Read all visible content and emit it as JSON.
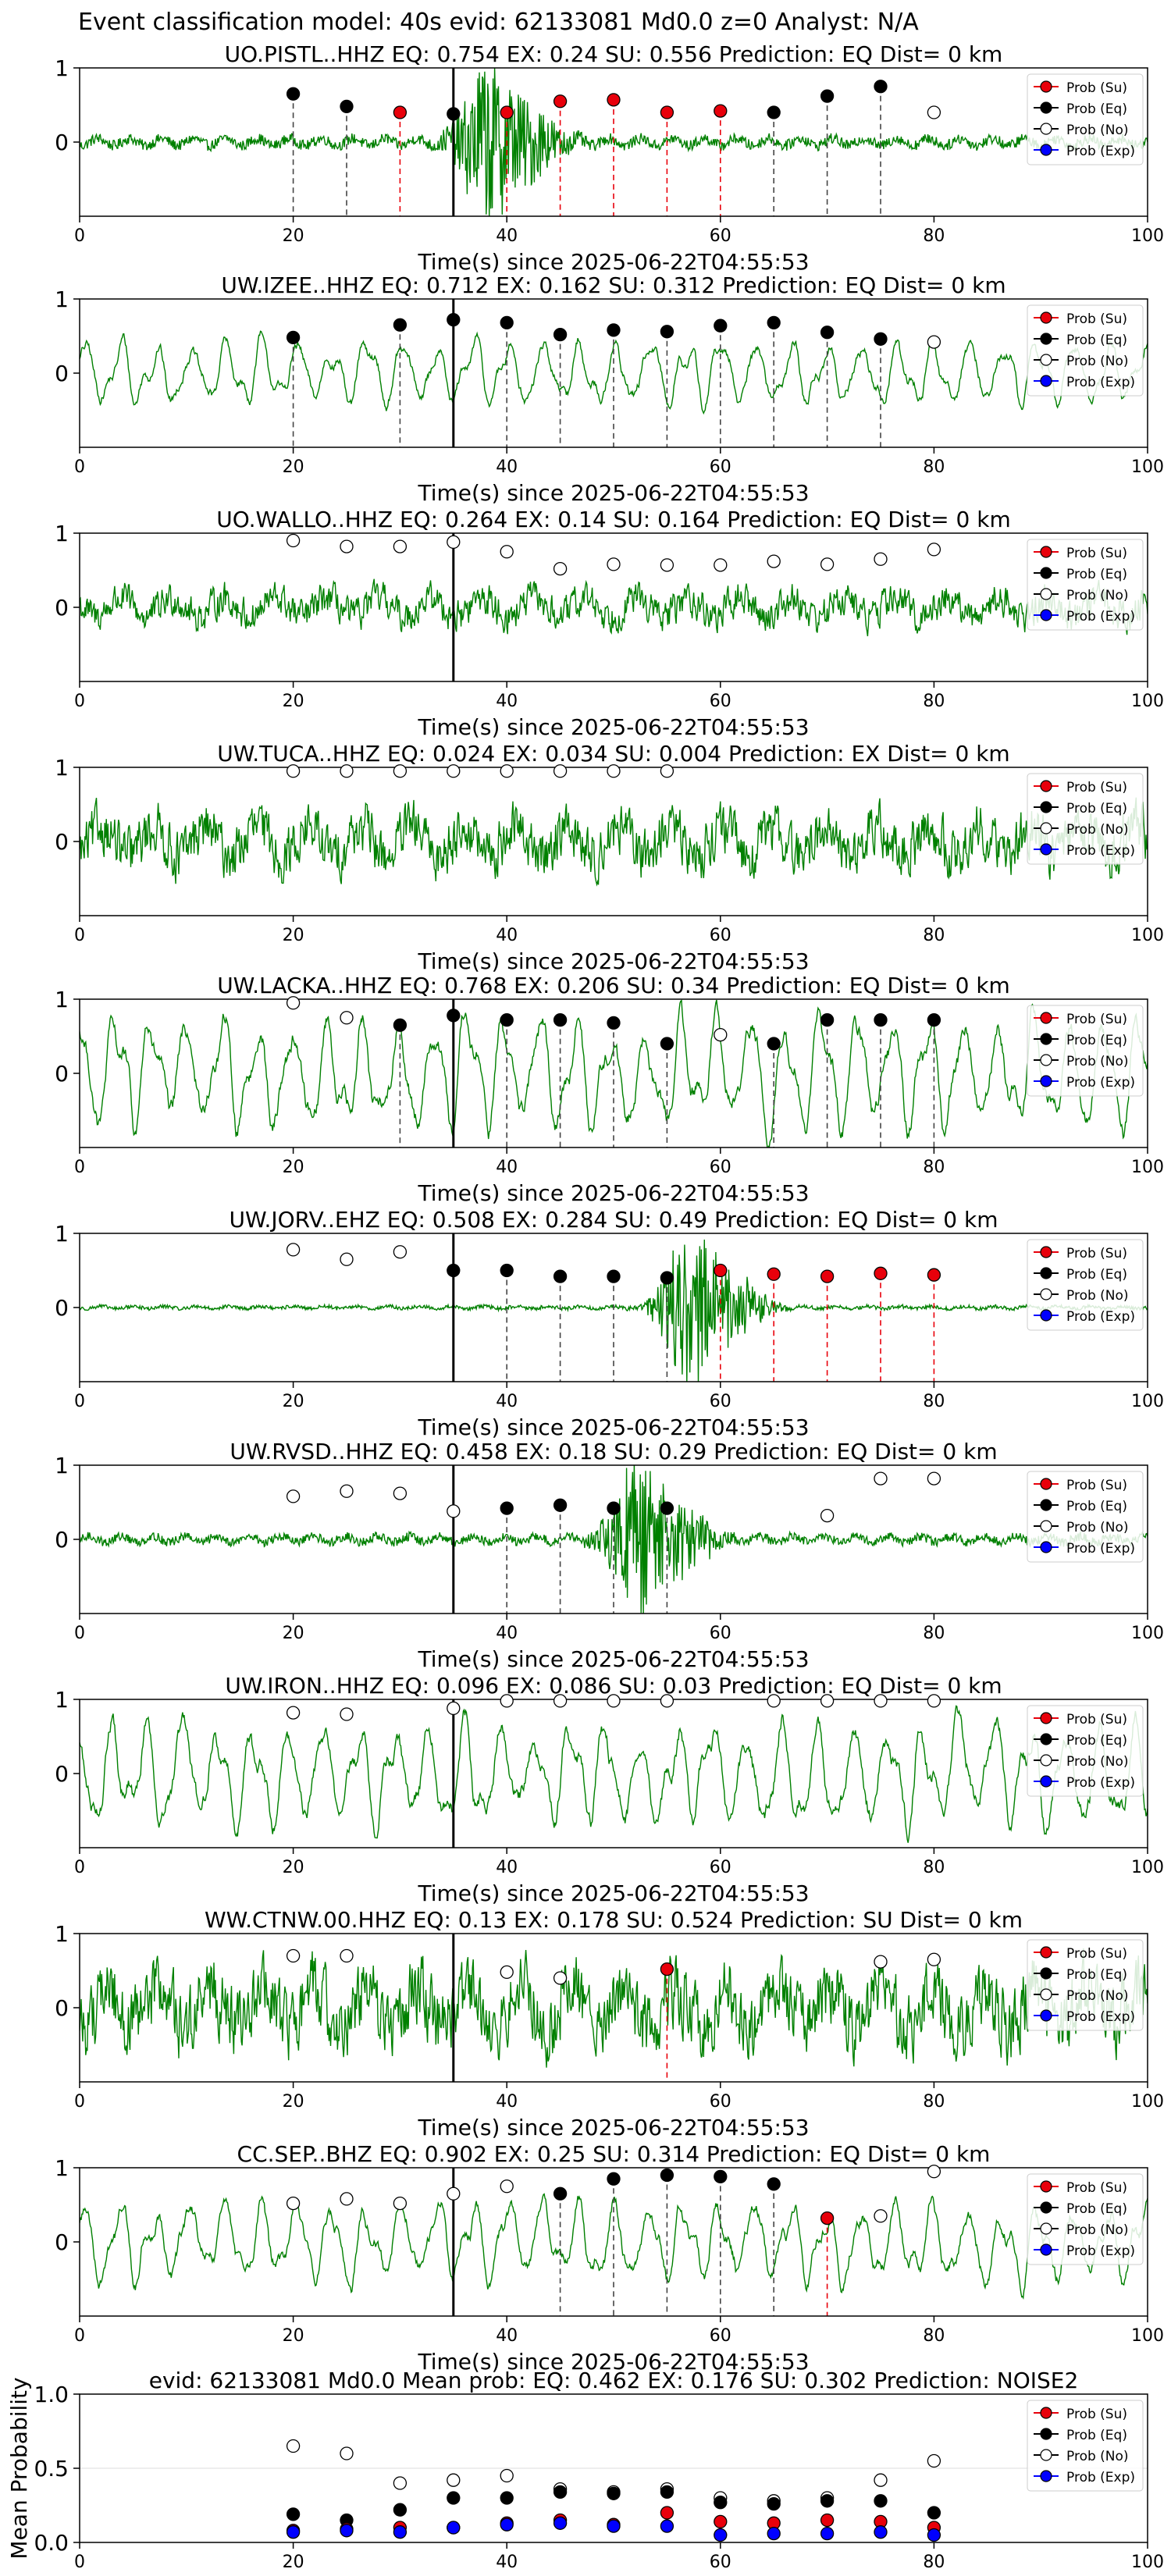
{
  "figure": {
    "suptitle": "Event classification model: 40s evid: 62133081 Md0.0 z=0 Analyst: N/A"
  },
  "legend_entries": [
    {
      "key": "su",
      "label": "Prob (Su)",
      "color": "#e8000b"
    },
    {
      "key": "eq",
      "label": "Prob (Eq)",
      "color": "#000000"
    },
    {
      "key": "no",
      "label": "Prob (No)",
      "color": "#ffffff"
    },
    {
      "key": "exp",
      "label": "Prob (Exp)",
      "color": "#0000ff"
    }
  ],
  "colors": {
    "waveform": "#008000",
    "eq_line": "#444444",
    "su_line": "#e8000b",
    "pick_line": "#000000"
  },
  "chart_data": [
    {
      "type": "scatter",
      "title": "UO.PISTL..HHZ   EQ: 0.754  EX: 0.24  SU: 0.556   Prediction: EQ    Dist= 0 km",
      "xlabel": "Time(s) since 2025-06-22T04:55:53",
      "xlim": [
        0,
        100
      ],
      "ylim": [
        -1,
        1
      ],
      "xticks": [
        0,
        20,
        40,
        60,
        80,
        100
      ],
      "yticks": [
        0,
        1
      ],
      "pick_time": 35,
      "waveform": {
        "style": "burst",
        "center": 38,
        "amp": 0.12,
        "burst_amp": 0.95
      },
      "points": [
        {
          "x": 20,
          "y": 0.65,
          "cls": "eq"
        },
        {
          "x": 25,
          "y": 0.48,
          "cls": "eq"
        },
        {
          "x": 30,
          "y": 0.4,
          "cls": "su"
        },
        {
          "x": 35,
          "y": 0.38,
          "cls": "eq"
        },
        {
          "x": 40,
          "y": 0.4,
          "cls": "su"
        },
        {
          "x": 45,
          "y": 0.55,
          "cls": "su"
        },
        {
          "x": 50,
          "y": 0.57,
          "cls": "su"
        },
        {
          "x": 55,
          "y": 0.4,
          "cls": "su"
        },
        {
          "x": 60,
          "y": 0.42,
          "cls": "su"
        },
        {
          "x": 65,
          "y": 0.4,
          "cls": "eq"
        },
        {
          "x": 70,
          "y": 0.62,
          "cls": "eq"
        },
        {
          "x": 75,
          "y": 0.75,
          "cls": "eq"
        },
        {
          "x": 80,
          "y": 0.4,
          "cls": "no"
        }
      ]
    },
    {
      "type": "scatter",
      "title": "UW.IZEE..HHZ   EQ: 0.712  EX: 0.162  SU: 0.312   Prediction: EQ    Dist= 0 km",
      "xlabel": "Time(s) since 2025-06-22T04:55:53",
      "xlim": [
        0,
        100
      ],
      "ylim": [
        -1,
        1
      ],
      "xticks": [
        0,
        20,
        40,
        60,
        80,
        100
      ],
      "yticks": [
        0,
        1
      ],
      "pick_time": 35,
      "waveform": {
        "style": "smooth",
        "amp": 0.4
      },
      "points": [
        {
          "x": 20,
          "y": 0.48,
          "cls": "eq"
        },
        {
          "x": 30,
          "y": 0.65,
          "cls": "eq"
        },
        {
          "x": 35,
          "y": 0.72,
          "cls": "eq"
        },
        {
          "x": 40,
          "y": 0.68,
          "cls": "eq"
        },
        {
          "x": 45,
          "y": 0.52,
          "cls": "eq"
        },
        {
          "x": 50,
          "y": 0.58,
          "cls": "eq"
        },
        {
          "x": 55,
          "y": 0.56,
          "cls": "eq"
        },
        {
          "x": 60,
          "y": 0.64,
          "cls": "eq"
        },
        {
          "x": 65,
          "y": 0.68,
          "cls": "eq"
        },
        {
          "x": 70,
          "y": 0.55,
          "cls": "eq"
        },
        {
          "x": 75,
          "y": 0.46,
          "cls": "eq"
        },
        {
          "x": 80,
          "y": 0.42,
          "cls": "no"
        }
      ]
    },
    {
      "type": "scatter",
      "title": "UO.WALLO..HHZ   EQ: 0.264  EX: 0.14  SU: 0.164   Prediction: EQ    Dist= 0 km",
      "xlabel": "Time(s) since 2025-06-22T04:55:53",
      "xlim": [
        0,
        100
      ],
      "ylim": [
        -1,
        1
      ],
      "xticks": [
        0,
        20,
        40,
        60,
        80,
        100
      ],
      "yticks": [
        0,
        1
      ],
      "pick_time": 35,
      "waveform": {
        "style": "noise",
        "amp": 0.35
      },
      "points": [
        {
          "x": 20,
          "y": 0.9,
          "cls": "no"
        },
        {
          "x": 25,
          "y": 0.82,
          "cls": "no"
        },
        {
          "x": 30,
          "y": 0.82,
          "cls": "no"
        },
        {
          "x": 35,
          "y": 0.88,
          "cls": "no"
        },
        {
          "x": 40,
          "y": 0.75,
          "cls": "no"
        },
        {
          "x": 45,
          "y": 0.52,
          "cls": "no"
        },
        {
          "x": 50,
          "y": 0.58,
          "cls": "no"
        },
        {
          "x": 55,
          "y": 0.57,
          "cls": "no"
        },
        {
          "x": 60,
          "y": 0.57,
          "cls": "no"
        },
        {
          "x": 65,
          "y": 0.62,
          "cls": "no"
        },
        {
          "x": 70,
          "y": 0.58,
          "cls": "no"
        },
        {
          "x": 75,
          "y": 0.65,
          "cls": "no"
        },
        {
          "x": 80,
          "y": 0.78,
          "cls": "no"
        }
      ]
    },
    {
      "type": "scatter",
      "title": "UW.TUCA..HHZ   EQ: 0.024  EX: 0.034  SU: 0.004   Prediction: EX    Dist= 0 km",
      "xlabel": "Time(s) since 2025-06-22T04:55:53",
      "xlim": [
        0,
        100
      ],
      "ylim": [
        -1,
        1
      ],
      "xticks": [
        0,
        20,
        40,
        60,
        80,
        100
      ],
      "yticks": [
        0,
        1
      ],
      "pick_time": null,
      "waveform": {
        "style": "noise",
        "amp": 0.55
      },
      "points": [
        {
          "x": 20,
          "y": 0.95,
          "cls": "no"
        },
        {
          "x": 25,
          "y": 0.95,
          "cls": "no"
        },
        {
          "x": 30,
          "y": 0.95,
          "cls": "no"
        },
        {
          "x": 35,
          "y": 0.95,
          "cls": "no"
        },
        {
          "x": 40,
          "y": 0.95,
          "cls": "no"
        },
        {
          "x": 45,
          "y": 0.95,
          "cls": "no"
        },
        {
          "x": 50,
          "y": 0.95,
          "cls": "no"
        },
        {
          "x": 55,
          "y": 0.95,
          "cls": "no"
        }
      ]
    },
    {
      "type": "scatter",
      "title": "UW.LACKA..HHZ   EQ: 0.768  EX: 0.206  SU: 0.34   Prediction: EQ    Dist= 0 km",
      "xlabel": "Time(s) since 2025-06-22T04:55:53",
      "xlim": [
        0,
        100
      ],
      "ylim": [
        -1,
        1
      ],
      "xticks": [
        0,
        20,
        40,
        60,
        80,
        100
      ],
      "yticks": [
        0,
        1
      ],
      "pick_time": 35,
      "waveform": {
        "style": "smooth",
        "amp": 0.7
      },
      "points": [
        {
          "x": 20,
          "y": 0.95,
          "cls": "no"
        },
        {
          "x": 25,
          "y": 0.75,
          "cls": "no"
        },
        {
          "x": 30,
          "y": 0.65,
          "cls": "eq"
        },
        {
          "x": 35,
          "y": 0.78,
          "cls": "eq"
        },
        {
          "x": 40,
          "y": 0.72,
          "cls": "eq"
        },
        {
          "x": 45,
          "y": 0.72,
          "cls": "eq"
        },
        {
          "x": 50,
          "y": 0.68,
          "cls": "eq"
        },
        {
          "x": 55,
          "y": 0.4,
          "cls": "eq"
        },
        {
          "x": 60,
          "y": 0.52,
          "cls": "no"
        },
        {
          "x": 65,
          "y": 0.4,
          "cls": "eq"
        },
        {
          "x": 70,
          "y": 0.72,
          "cls": "eq"
        },
        {
          "x": 75,
          "y": 0.72,
          "cls": "eq"
        },
        {
          "x": 80,
          "y": 0.72,
          "cls": "eq"
        }
      ]
    },
    {
      "type": "scatter",
      "title": "UW.JORV..EHZ   EQ: 0.508  EX: 0.284  SU: 0.49   Prediction: EQ    Dist= 0 km",
      "xlabel": "Time(s) since 2025-06-22T04:55:53",
      "xlim": [
        0,
        100
      ],
      "ylim": [
        -1,
        1
      ],
      "xticks": [
        0,
        20,
        40,
        60,
        80,
        100
      ],
      "yticks": [
        0,
        1
      ],
      "pick_time": 35,
      "waveform": {
        "style": "burst",
        "center": 57,
        "amp": 0.04,
        "burst_amp": 1.0
      },
      "points": [
        {
          "x": 20,
          "y": 0.78,
          "cls": "no"
        },
        {
          "x": 25,
          "y": 0.65,
          "cls": "no"
        },
        {
          "x": 30,
          "y": 0.75,
          "cls": "no"
        },
        {
          "x": 35,
          "y": 0.5,
          "cls": "eq"
        },
        {
          "x": 40,
          "y": 0.5,
          "cls": "eq"
        },
        {
          "x": 45,
          "y": 0.42,
          "cls": "eq"
        },
        {
          "x": 50,
          "y": 0.42,
          "cls": "eq"
        },
        {
          "x": 55,
          "y": 0.4,
          "cls": "eq"
        },
        {
          "x": 60,
          "y": 0.5,
          "cls": "su"
        },
        {
          "x": 65,
          "y": 0.45,
          "cls": "su"
        },
        {
          "x": 70,
          "y": 0.42,
          "cls": "su"
        },
        {
          "x": 75,
          "y": 0.46,
          "cls": "su"
        },
        {
          "x": 80,
          "y": 0.44,
          "cls": "su"
        }
      ]
    },
    {
      "type": "scatter",
      "title": "UW.RVSD..HHZ   EQ: 0.458  EX: 0.18  SU: 0.29   Prediction: EQ    Dist= 0 km",
      "xlabel": "Time(s) since 2025-06-22T04:55:53",
      "xlim": [
        0,
        100
      ],
      "ylim": [
        -1,
        1
      ],
      "xticks": [
        0,
        20,
        40,
        60,
        80,
        100
      ],
      "yticks": [
        0,
        1
      ],
      "pick_time": 35,
      "waveform": {
        "style": "burst",
        "center": 52,
        "amp": 0.1,
        "burst_amp": 0.95
      },
      "points": [
        {
          "x": 20,
          "y": 0.58,
          "cls": "no"
        },
        {
          "x": 25,
          "y": 0.65,
          "cls": "no"
        },
        {
          "x": 30,
          "y": 0.62,
          "cls": "no"
        },
        {
          "x": 35,
          "y": 0.38,
          "cls": "no"
        },
        {
          "x": 40,
          "y": 0.42,
          "cls": "eq"
        },
        {
          "x": 45,
          "y": 0.46,
          "cls": "eq"
        },
        {
          "x": 50,
          "y": 0.42,
          "cls": "eq"
        },
        {
          "x": 55,
          "y": 0.42,
          "cls": "eq"
        },
        {
          "x": 70,
          "y": 0.32,
          "cls": "no"
        },
        {
          "x": 75,
          "y": 0.82,
          "cls": "no"
        },
        {
          "x": 80,
          "y": 0.82,
          "cls": "no"
        }
      ]
    },
    {
      "type": "scatter",
      "title": "UW.IRON..HHZ   EQ: 0.096  EX: 0.086  SU: 0.03   Prediction: EQ    Dist= 0 km",
      "xlabel": "Time(s) since 2025-06-22T04:55:53",
      "xlim": [
        0,
        100
      ],
      "ylim": [
        -1,
        1
      ],
      "xticks": [
        0,
        20,
        40,
        60,
        80,
        100
      ],
      "yticks": [
        0,
        1
      ],
      "pick_time": 35,
      "waveform": {
        "style": "smooth",
        "amp": 0.65
      },
      "points": [
        {
          "x": 20,
          "y": 0.82,
          "cls": "no"
        },
        {
          "x": 25,
          "y": 0.8,
          "cls": "no"
        },
        {
          "x": 35,
          "y": 0.88,
          "cls": "no"
        },
        {
          "x": 40,
          "y": 0.98,
          "cls": "no"
        },
        {
          "x": 45,
          "y": 0.98,
          "cls": "no"
        },
        {
          "x": 50,
          "y": 0.98,
          "cls": "no"
        },
        {
          "x": 55,
          "y": 0.98,
          "cls": "no"
        },
        {
          "x": 65,
          "y": 0.98,
          "cls": "no"
        },
        {
          "x": 70,
          "y": 0.98,
          "cls": "no"
        },
        {
          "x": 75,
          "y": 0.98,
          "cls": "no"
        },
        {
          "x": 80,
          "y": 0.98,
          "cls": "no"
        }
      ]
    },
    {
      "type": "scatter",
      "title": "WW.CTNW.00.HHZ   EQ: 0.13  EX: 0.178  SU: 0.524   Prediction: SU    Dist= 0 km",
      "xlabel": "Time(s) since 2025-06-22T04:55:53",
      "xlim": [
        0,
        100
      ],
      "ylim": [
        -1,
        1
      ],
      "xticks": [
        0,
        20,
        40,
        60,
        80,
        100
      ],
      "yticks": [
        0,
        1
      ],
      "pick_time": 35,
      "waveform": {
        "style": "noise",
        "amp": 0.75
      },
      "points": [
        {
          "x": 20,
          "y": 0.7,
          "cls": "no"
        },
        {
          "x": 25,
          "y": 0.7,
          "cls": "no"
        },
        {
          "x": 40,
          "y": 0.48,
          "cls": "no"
        },
        {
          "x": 45,
          "y": 0.4,
          "cls": "no"
        },
        {
          "x": 55,
          "y": 0.52,
          "cls": "su"
        },
        {
          "x": 75,
          "y": 0.62,
          "cls": "no"
        },
        {
          "x": 80,
          "y": 0.65,
          "cls": "no"
        }
      ]
    },
    {
      "type": "scatter",
      "title": "CC.SEP..BHZ   EQ: 0.902  EX: 0.25  SU: 0.314   Prediction: EQ    Dist= 0 km",
      "xlabel": "Time(s) since 2025-06-22T04:55:53",
      "xlim": [
        0,
        100
      ],
      "ylim": [
        -1,
        1
      ],
      "xticks": [
        0,
        20,
        40,
        60,
        80,
        100
      ],
      "yticks": [
        0,
        1
      ],
      "pick_time": 35,
      "waveform": {
        "style": "smooth",
        "amp": 0.5
      },
      "points": [
        {
          "x": 20,
          "y": 0.52,
          "cls": "no"
        },
        {
          "x": 25,
          "y": 0.58,
          "cls": "no"
        },
        {
          "x": 30,
          "y": 0.52,
          "cls": "no"
        },
        {
          "x": 35,
          "y": 0.65,
          "cls": "no"
        },
        {
          "x": 40,
          "y": 0.75,
          "cls": "no"
        },
        {
          "x": 45,
          "y": 0.65,
          "cls": "eq"
        },
        {
          "x": 50,
          "y": 0.85,
          "cls": "eq"
        },
        {
          "x": 55,
          "y": 0.9,
          "cls": "eq"
        },
        {
          "x": 60,
          "y": 0.88,
          "cls": "eq"
        },
        {
          "x": 65,
          "y": 0.78,
          "cls": "eq"
        },
        {
          "x": 70,
          "y": 0.32,
          "cls": "su"
        },
        {
          "x": 75,
          "y": 0.35,
          "cls": "no"
        },
        {
          "x": 80,
          "y": 0.95,
          "cls": "no"
        }
      ]
    },
    {
      "type": "scatter",
      "title": "evid: 62133081  Md0.0   Mean prob:   EQ: 0.462  EX: 0.176  SU: 0.302   Prediction: NOISE2",
      "xlabel": "",
      "ylabel": "Mean Probability",
      "xlim": [
        0,
        100
      ],
      "ylim": [
        0,
        1
      ],
      "xticks": [
        0,
        20,
        40,
        60,
        80,
        100
      ],
      "yticks": [
        0.0,
        0.5,
        1.0
      ],
      "ytick_labels": [
        "0.0",
        "0.5",
        "1.0"
      ],
      "grid": true,
      "x": [
        20,
        25,
        30,
        35,
        40,
        45,
        50,
        55,
        60,
        65,
        70,
        75,
        80
      ],
      "series": [
        {
          "name": "Prob (No)",
          "cls": "no",
          "values": [
            0.65,
            0.6,
            0.4,
            0.42,
            0.45,
            0.36,
            0.34,
            0.36,
            0.3,
            0.28,
            0.3,
            0.42,
            0.55
          ]
        },
        {
          "name": "Prob (Eq)",
          "cls": "eq",
          "values": [
            0.19,
            0.15,
            0.22,
            0.3,
            0.3,
            0.34,
            0.33,
            0.34,
            0.27,
            0.26,
            0.28,
            0.28,
            0.2
          ]
        },
        {
          "name": "Prob (Su)",
          "cls": "su",
          "values": [
            0.08,
            0.09,
            0.1,
            0.1,
            0.13,
            0.15,
            0.12,
            0.2,
            0.14,
            0.13,
            0.15,
            0.14,
            0.1
          ]
        },
        {
          "name": "Prob (Exp)",
          "cls": "exp",
          "values": [
            0.07,
            0.08,
            0.07,
            0.1,
            0.12,
            0.13,
            0.11,
            0.11,
            0.05,
            0.06,
            0.06,
            0.07,
            0.05
          ]
        }
      ]
    }
  ]
}
